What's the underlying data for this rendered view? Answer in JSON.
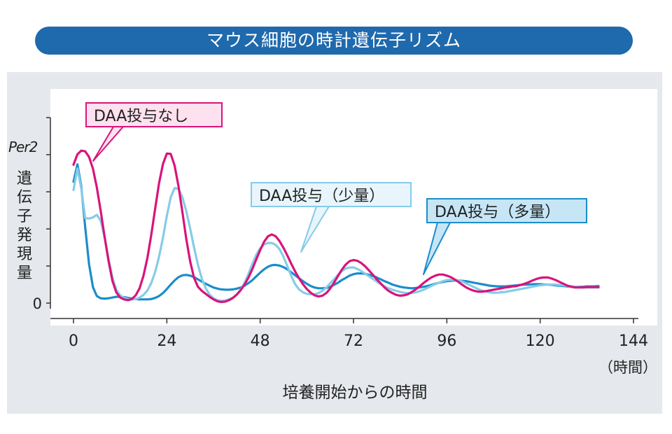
{
  "title": "マウス細胞の時計遺伝子リズム",
  "colors": {
    "title_bg": "#1f69ad",
    "panel_bg": "#e5e8ec",
    "none": "#d9137a",
    "low": "#86cbe9",
    "high": "#1a8dcb"
  },
  "y_axis": {
    "gene": "Per2",
    "label_chars": [
      "遺",
      "伝",
      "子",
      "発",
      "現",
      "量"
    ],
    "zero_label": "0"
  },
  "x_axis": {
    "label": "培養開始からの時間",
    "unit": "（時間）",
    "ticks": [
      "0",
      "24",
      "48",
      "72",
      "96",
      "120",
      "144"
    ]
  },
  "chart_data": {
    "type": "line",
    "title": "マウス細胞の時計遺伝子リズム",
    "xlabel": "培養開始からの時間",
    "ylabel": "Per2 遺伝子発現量",
    "xlim": [
      0,
      144
    ],
    "ylim": [
      0,
      5
    ],
    "grid": false,
    "series": [
      {
        "name": "DAA投与なし",
        "color": "#d9137a",
        "x": [
          0,
          1,
          2,
          3,
          4,
          5,
          6,
          7,
          8,
          9,
          10,
          11,
          12,
          13,
          14,
          15,
          16,
          17,
          18,
          19,
          20,
          21,
          22,
          23,
          24,
          25,
          26,
          27,
          28,
          29,
          30,
          31,
          32,
          33,
          34,
          35,
          36,
          37,
          38,
          39,
          40,
          41,
          42,
          43,
          44,
          45,
          46,
          47,
          48,
          49,
          50,
          51,
          52,
          53,
          54,
          55,
          56,
          57,
          58,
          59,
          60,
          61,
          62,
          63,
          64,
          65,
          66,
          67,
          68,
          69,
          70,
          71,
          72,
          73,
          74,
          75,
          76,
          77,
          78,
          79,
          80,
          81,
          82,
          83,
          84,
          85,
          86,
          87,
          88,
          89,
          90,
          91,
          92,
          93,
          94,
          95,
          96,
          97,
          98,
          99,
          100,
          101,
          102,
          103,
          104,
          105,
          106,
          107,
          108,
          109,
          110,
          111,
          112,
          113,
          114,
          115,
          116,
          117,
          118,
          119,
          120,
          121,
          122,
          123,
          124,
          125,
          126,
          127,
          128,
          129,
          130,
          131,
          132,
          133,
          134,
          135
        ],
        "values": [
          3.73,
          4.01,
          4.11,
          4.09,
          3.94,
          3.62,
          3.12,
          2.48,
          1.79,
          1.14,
          0.6,
          0.29,
          0.15,
          0.1,
          0.08,
          0.11,
          0.21,
          0.4,
          0.74,
          1.22,
          1.84,
          2.55,
          3.23,
          3.75,
          4.03,
          4.02,
          3.71,
          3.15,
          2.45,
          1.73,
          1.12,
          0.68,
          0.44,
          0.33,
          0.25,
          0.17,
          0.1,
          0.05,
          0.03,
          0.04,
          0.08,
          0.14,
          0.23,
          0.35,
          0.5,
          0.69,
          0.92,
          1.18,
          1.43,
          1.65,
          1.8,
          1.85,
          1.8,
          1.67,
          1.49,
          1.28,
          1.06,
          0.85,
          0.67,
          0.51,
          0.38,
          0.28,
          0.21,
          0.18,
          0.2,
          0.27,
          0.39,
          0.55,
          0.73,
          0.9,
          1.04,
          1.13,
          1.16,
          1.14,
          1.08,
          0.99,
          0.88,
          0.76,
          0.64,
          0.53,
          0.42,
          0.33,
          0.27,
          0.22,
          0.2,
          0.21,
          0.24,
          0.3,
          0.37,
          0.45,
          0.54,
          0.62,
          0.69,
          0.74,
          0.77,
          0.77,
          0.74,
          0.7,
          0.64,
          0.57,
          0.49,
          0.42,
          0.37,
          0.33,
          0.31,
          0.31,
          0.32,
          0.34,
          0.36,
          0.38,
          0.4,
          0.42,
          0.43,
          0.45,
          0.46,
          0.49,
          0.52,
          0.56,
          0.61,
          0.65,
          0.68,
          0.69,
          0.69,
          0.66,
          0.62,
          0.57,
          0.52,
          0.47,
          0.44,
          0.42,
          0.42,
          0.42,
          0.43,
          0.43,
          0.43,
          0.43
        ]
      },
      {
        "name": "DAA投与（少量）",
        "color": "#86cbe9",
        "x": [
          0,
          1,
          2,
          3,
          4,
          5,
          6,
          7,
          8,
          9,
          10,
          11,
          12,
          13,
          14,
          15,
          16,
          17,
          18,
          19,
          20,
          21,
          22,
          23,
          24,
          25,
          26,
          27,
          28,
          29,
          30,
          31,
          32,
          33,
          34,
          35,
          36,
          37,
          38,
          39,
          40,
          41,
          42,
          43,
          44,
          45,
          46,
          47,
          48,
          49,
          50,
          51,
          52,
          53,
          54,
          55,
          56,
          57,
          58,
          59,
          60,
          61,
          62,
          63,
          64,
          65,
          66,
          67,
          68,
          69,
          70,
          71,
          72,
          73,
          74,
          75,
          76,
          77,
          78,
          79,
          80,
          81,
          82,
          83,
          84,
          85,
          86,
          87,
          88,
          89,
          90,
          91,
          92,
          93,
          94,
          95,
          96,
          97,
          98,
          99,
          100,
          101,
          102,
          103,
          104,
          105,
          106,
          107,
          108,
          109,
          110,
          111,
          112,
          113,
          114,
          115,
          116,
          117,
          118,
          119,
          120,
          121,
          122,
          123,
          124,
          125,
          126,
          127,
          128,
          129,
          130,
          131,
          132,
          133,
          134,
          135
        ],
        "values": [
          3.05,
          3.63,
          3.09,
          2.29,
          2.28,
          2.31,
          2.38,
          2.22,
          1.78,
          1.2,
          0.69,
          0.36,
          0.21,
          0.14,
          0.11,
          0.1,
          0.11,
          0.15,
          0.22,
          0.34,
          0.54,
          0.84,
          1.25,
          1.76,
          2.35,
          2.85,
          3.1,
          3.08,
          2.85,
          2.48,
          2.01,
          1.5,
          1.03,
          0.66,
          0.4,
          0.23,
          0.13,
          0.08,
          0.06,
          0.07,
          0.1,
          0.15,
          0.23,
          0.36,
          0.55,
          0.79,
          1.06,
          1.3,
          1.48,
          1.58,
          1.62,
          1.62,
          1.57,
          1.45,
          1.25,
          0.99,
          0.73,
          0.51,
          0.37,
          0.29,
          0.25,
          0.24,
          0.24,
          0.27,
          0.33,
          0.42,
          0.53,
          0.64,
          0.76,
          0.86,
          0.93,
          0.96,
          0.96,
          0.92,
          0.86,
          0.79,
          0.72,
          0.65,
          0.58,
          0.51,
          0.45,
          0.4,
          0.36,
          0.33,
          0.3,
          0.28,
          0.27,
          0.27,
          0.29,
          0.32,
          0.36,
          0.41,
          0.46,
          0.51,
          0.55,
          0.59,
          0.62,
          0.63,
          0.63,
          0.61,
          0.58,
          0.53,
          0.48,
          0.43,
          0.38,
          0.34,
          0.31,
          0.29,
          0.28,
          0.28,
          0.29,
          0.3,
          0.32,
          0.34,
          0.36,
          0.38,
          0.4,
          0.42,
          0.44,
          0.46,
          0.48,
          0.49,
          0.5,
          0.5,
          0.5,
          0.49,
          0.48,
          0.47,
          0.45,
          0.44,
          0.43,
          0.42,
          0.42,
          0.42,
          0.42,
          0.42
        ]
      },
      {
        "name": "DAA投与（多量）",
        "color": "#1a8dcb",
        "x": [
          0,
          1,
          2,
          3,
          4,
          5,
          6,
          7,
          8,
          9,
          10,
          11,
          12,
          13,
          14,
          15,
          16,
          17,
          18,
          19,
          20,
          21,
          22,
          23,
          24,
          25,
          26,
          27,
          28,
          29,
          30,
          31,
          32,
          33,
          34,
          35,
          36,
          37,
          38,
          39,
          40,
          41,
          42,
          43,
          44,
          45,
          46,
          47,
          48,
          49,
          50,
          51,
          52,
          53,
          54,
          55,
          56,
          57,
          58,
          59,
          60,
          61,
          62,
          63,
          64,
          65,
          66,
          67,
          68,
          69,
          70,
          71,
          72,
          73,
          74,
          75,
          76,
          77,
          78,
          79,
          80,
          81,
          82,
          83,
          84,
          85,
          86,
          87,
          88,
          89,
          90,
          91,
          92,
          93,
          94,
          95,
          96,
          97,
          98,
          99,
          100,
          101,
          102,
          103,
          104,
          105,
          106,
          107,
          108,
          109,
          110,
          111,
          112,
          113,
          114,
          115,
          116,
          117,
          118,
          119,
          120,
          121,
          122,
          123,
          124,
          125,
          126,
          127,
          128,
          129,
          130,
          131,
          132,
          133,
          134,
          135
        ],
        "values": [
          3.27,
          3.74,
          3.15,
          2.05,
          1.05,
          0.43,
          0.19,
          0.13,
          0.12,
          0.13,
          0.15,
          0.17,
          0.17,
          0.16,
          0.14,
          0.12,
          0.11,
          0.1,
          0.1,
          0.1,
          0.11,
          0.14,
          0.19,
          0.27,
          0.38,
          0.5,
          0.61,
          0.7,
          0.75,
          0.76,
          0.74,
          0.7,
          0.64,
          0.58,
          0.52,
          0.47,
          0.42,
          0.39,
          0.37,
          0.36,
          0.36,
          0.37,
          0.39,
          0.42,
          0.47,
          0.54,
          0.62,
          0.72,
          0.82,
          0.91,
          0.98,
          1.02,
          1.03,
          1.01,
          0.97,
          0.91,
          0.83,
          0.75,
          0.67,
          0.59,
          0.52,
          0.46,
          0.42,
          0.4,
          0.4,
          0.41,
          0.44,
          0.49,
          0.55,
          0.62,
          0.68,
          0.74,
          0.78,
          0.8,
          0.8,
          0.79,
          0.76,
          0.73,
          0.69,
          0.64,
          0.59,
          0.55,
          0.5,
          0.47,
          0.44,
          0.42,
          0.41,
          0.4,
          0.41,
          0.42,
          0.44,
          0.46,
          0.49,
          0.52,
          0.55,
          0.57,
          0.59,
          0.6,
          0.61,
          0.61,
          0.6,
          0.59,
          0.57,
          0.55,
          0.53,
          0.51,
          0.49,
          0.47,
          0.46,
          0.45,
          0.45,
          0.45,
          0.46,
          0.47,
          0.48,
          0.49,
          0.5,
          0.5,
          0.51,
          0.51,
          0.51,
          0.5,
          0.5,
          0.49,
          0.48,
          0.47,
          0.46,
          0.45,
          0.45,
          0.44,
          0.44,
          0.44,
          0.45,
          0.45,
          0.45,
          0.46
        ]
      }
    ]
  }
}
